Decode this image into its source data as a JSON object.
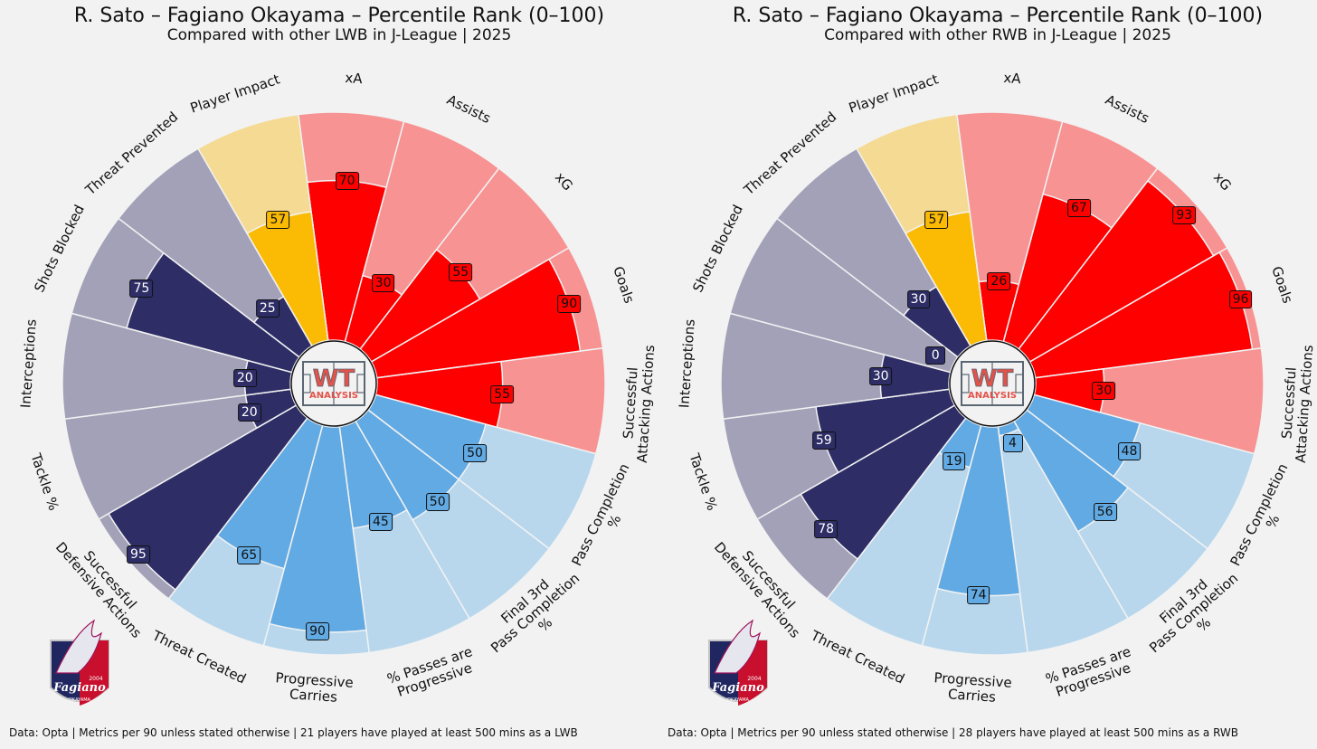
{
  "colors": {
    "background": "#f2f2f2",
    "attack_bar": "#ff0000",
    "attack_bg": "#f79393",
    "possession_bar": "#62aae3",
    "possession_bg": "#b8d7ed",
    "defense_bar": "#2e2d66",
    "defense_bg": "#a2a1b8",
    "impact_bar": "#fbbb04",
    "impact_bg": "#f5da93"
  },
  "chart_data": [
    {
      "type": "radial-bar",
      "title": "R. Sato – Fagiano Okayama – Percentile Rank (0–100)",
      "subtitle": "Compared with other LWB in J-League | 2025",
      "footer": "Data: Opta | Metrics per 90 unless stated otherwise | 21 players have played at least 500 mins as a LWB",
      "range": [
        0,
        100
      ],
      "metrics": [
        {
          "label": "xA",
          "value": 70,
          "group": "attack"
        },
        {
          "label": "Assists",
          "value": 30,
          "group": "attack"
        },
        {
          "label": "xG",
          "value": 55,
          "group": "attack"
        },
        {
          "label": "Goals",
          "value": 90,
          "group": "attack"
        },
        {
          "label": "Successful\nAttacking Actions",
          "value": 55,
          "group": "attack"
        },
        {
          "label": "Pass Completion\n%",
          "value": 50,
          "group": "possession"
        },
        {
          "label": "Final 3rd\nPass Completion\n%",
          "value": 50,
          "group": "possession"
        },
        {
          "label": "% Passes are\nProgressive",
          "value": 45,
          "group": "possession"
        },
        {
          "label": "Progressive\nCarries",
          "value": 90,
          "group": "possession"
        },
        {
          "label": "Threat Created",
          "value": 65,
          "group": "possession"
        },
        {
          "label": "Successful\nDefensive Actions",
          "value": 95,
          "group": "defense"
        },
        {
          "label": "Tackle %",
          "value": 20,
          "group": "defense"
        },
        {
          "label": "Interceptions",
          "value": 20,
          "group": "defense"
        },
        {
          "label": "Shots Blocked",
          "value": 75,
          "group": "defense"
        },
        {
          "label": "Threat Prevented",
          "value": 25,
          "group": "defense"
        },
        {
          "label": "Player Impact",
          "value": 57,
          "group": "impact"
        }
      ]
    },
    {
      "type": "radial-bar",
      "title": "R. Sato – Fagiano Okayama – Percentile Rank (0–100)",
      "subtitle": "Compared with other RWB in J-League | 2025",
      "footer": "Data: Opta | Metrics per 90 unless stated otherwise | 28 players have played at least 500 mins as a RWB",
      "range": [
        0,
        100
      ],
      "metrics": [
        {
          "label": "xA",
          "value": 26,
          "group": "attack"
        },
        {
          "label": "Assists",
          "value": 67,
          "group": "attack"
        },
        {
          "label": "xG",
          "value": 93,
          "group": "attack"
        },
        {
          "label": "Goals",
          "value": 96,
          "group": "attack"
        },
        {
          "label": "Successful\nAttacking Actions",
          "value": 30,
          "group": "attack"
        },
        {
          "label": "Pass Completion\n%",
          "value": 48,
          "group": "possession"
        },
        {
          "label": "Final 3rd\nPass Completion\n%",
          "value": 56,
          "group": "possession"
        },
        {
          "label": "% Passes are\nProgressive",
          "value": 4,
          "group": "possession"
        },
        {
          "label": "Progressive\nCarries",
          "value": 74,
          "group": "possession"
        },
        {
          "label": "Threat Created",
          "value": 19,
          "group": "possession"
        },
        {
          "label": "Successful\nDefensive Actions",
          "value": 78,
          "group": "defense"
        },
        {
          "label": "Tackle %",
          "value": 59,
          "group": "defense"
        },
        {
          "label": "Interceptions",
          "value": 30,
          "group": "defense"
        },
        {
          "label": "Shots Blocked",
          "value": 0,
          "group": "defense"
        },
        {
          "label": "Threat Prevented",
          "value": 30,
          "group": "defense"
        },
        {
          "label": "Player Impact",
          "value": 57,
          "group": "impact"
        }
      ]
    }
  ],
  "logo": {
    "line1": "WT",
    "line2": "ANALYSIS"
  },
  "crest": {
    "text": "Fagiano",
    "year": "2004",
    "city": "OKAYAMA"
  }
}
